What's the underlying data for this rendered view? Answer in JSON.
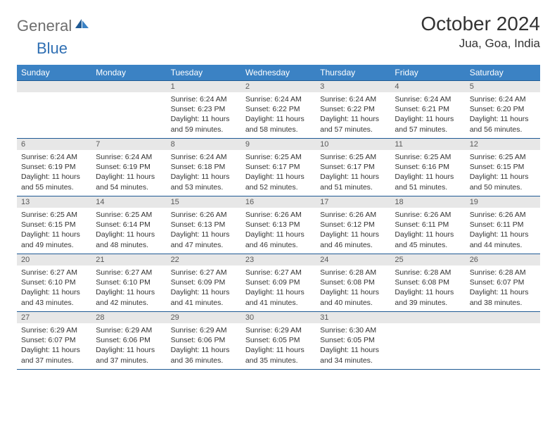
{
  "logo": {
    "part1": "General",
    "part2": "Blue"
  },
  "title": "October 2024",
  "location": "Jua, Goa, India",
  "colors": {
    "header_bg": "#3b82c4",
    "header_border": "#1f5a94",
    "daynum_bg": "#e7e7e7",
    "daynum_color": "#5a5a5a",
    "text": "#333333",
    "logo_gray": "#6e6e6e",
    "logo_blue": "#2f6fb3",
    "page_bg": "#ffffff"
  },
  "weekdays": [
    "Sunday",
    "Monday",
    "Tuesday",
    "Wednesday",
    "Thursday",
    "Friday",
    "Saturday"
  ],
  "weeks": [
    [
      null,
      null,
      {
        "n": "1",
        "sunrise": "Sunrise: 6:24 AM",
        "sunset": "Sunset: 6:23 PM",
        "daylight": "Daylight: 11 hours and 59 minutes."
      },
      {
        "n": "2",
        "sunrise": "Sunrise: 6:24 AM",
        "sunset": "Sunset: 6:22 PM",
        "daylight": "Daylight: 11 hours and 58 minutes."
      },
      {
        "n": "3",
        "sunrise": "Sunrise: 6:24 AM",
        "sunset": "Sunset: 6:22 PM",
        "daylight": "Daylight: 11 hours and 57 minutes."
      },
      {
        "n": "4",
        "sunrise": "Sunrise: 6:24 AM",
        "sunset": "Sunset: 6:21 PM",
        "daylight": "Daylight: 11 hours and 57 minutes."
      },
      {
        "n": "5",
        "sunrise": "Sunrise: 6:24 AM",
        "sunset": "Sunset: 6:20 PM",
        "daylight": "Daylight: 11 hours and 56 minutes."
      }
    ],
    [
      {
        "n": "6",
        "sunrise": "Sunrise: 6:24 AM",
        "sunset": "Sunset: 6:19 PM",
        "daylight": "Daylight: 11 hours and 55 minutes."
      },
      {
        "n": "7",
        "sunrise": "Sunrise: 6:24 AM",
        "sunset": "Sunset: 6:19 PM",
        "daylight": "Daylight: 11 hours and 54 minutes."
      },
      {
        "n": "8",
        "sunrise": "Sunrise: 6:24 AM",
        "sunset": "Sunset: 6:18 PM",
        "daylight": "Daylight: 11 hours and 53 minutes."
      },
      {
        "n": "9",
        "sunrise": "Sunrise: 6:25 AM",
        "sunset": "Sunset: 6:17 PM",
        "daylight": "Daylight: 11 hours and 52 minutes."
      },
      {
        "n": "10",
        "sunrise": "Sunrise: 6:25 AM",
        "sunset": "Sunset: 6:17 PM",
        "daylight": "Daylight: 11 hours and 51 minutes."
      },
      {
        "n": "11",
        "sunrise": "Sunrise: 6:25 AM",
        "sunset": "Sunset: 6:16 PM",
        "daylight": "Daylight: 11 hours and 51 minutes."
      },
      {
        "n": "12",
        "sunrise": "Sunrise: 6:25 AM",
        "sunset": "Sunset: 6:15 PM",
        "daylight": "Daylight: 11 hours and 50 minutes."
      }
    ],
    [
      {
        "n": "13",
        "sunrise": "Sunrise: 6:25 AM",
        "sunset": "Sunset: 6:15 PM",
        "daylight": "Daylight: 11 hours and 49 minutes."
      },
      {
        "n": "14",
        "sunrise": "Sunrise: 6:25 AM",
        "sunset": "Sunset: 6:14 PM",
        "daylight": "Daylight: 11 hours and 48 minutes."
      },
      {
        "n": "15",
        "sunrise": "Sunrise: 6:26 AM",
        "sunset": "Sunset: 6:13 PM",
        "daylight": "Daylight: 11 hours and 47 minutes."
      },
      {
        "n": "16",
        "sunrise": "Sunrise: 6:26 AM",
        "sunset": "Sunset: 6:13 PM",
        "daylight": "Daylight: 11 hours and 46 minutes."
      },
      {
        "n": "17",
        "sunrise": "Sunrise: 6:26 AM",
        "sunset": "Sunset: 6:12 PM",
        "daylight": "Daylight: 11 hours and 46 minutes."
      },
      {
        "n": "18",
        "sunrise": "Sunrise: 6:26 AM",
        "sunset": "Sunset: 6:11 PM",
        "daylight": "Daylight: 11 hours and 45 minutes."
      },
      {
        "n": "19",
        "sunrise": "Sunrise: 6:26 AM",
        "sunset": "Sunset: 6:11 PM",
        "daylight": "Daylight: 11 hours and 44 minutes."
      }
    ],
    [
      {
        "n": "20",
        "sunrise": "Sunrise: 6:27 AM",
        "sunset": "Sunset: 6:10 PM",
        "daylight": "Daylight: 11 hours and 43 minutes."
      },
      {
        "n": "21",
        "sunrise": "Sunrise: 6:27 AM",
        "sunset": "Sunset: 6:10 PM",
        "daylight": "Daylight: 11 hours and 42 minutes."
      },
      {
        "n": "22",
        "sunrise": "Sunrise: 6:27 AM",
        "sunset": "Sunset: 6:09 PM",
        "daylight": "Daylight: 11 hours and 41 minutes."
      },
      {
        "n": "23",
        "sunrise": "Sunrise: 6:27 AM",
        "sunset": "Sunset: 6:09 PM",
        "daylight": "Daylight: 11 hours and 41 minutes."
      },
      {
        "n": "24",
        "sunrise": "Sunrise: 6:28 AM",
        "sunset": "Sunset: 6:08 PM",
        "daylight": "Daylight: 11 hours and 40 minutes."
      },
      {
        "n": "25",
        "sunrise": "Sunrise: 6:28 AM",
        "sunset": "Sunset: 6:08 PM",
        "daylight": "Daylight: 11 hours and 39 minutes."
      },
      {
        "n": "26",
        "sunrise": "Sunrise: 6:28 AM",
        "sunset": "Sunset: 6:07 PM",
        "daylight": "Daylight: 11 hours and 38 minutes."
      }
    ],
    [
      {
        "n": "27",
        "sunrise": "Sunrise: 6:29 AM",
        "sunset": "Sunset: 6:07 PM",
        "daylight": "Daylight: 11 hours and 37 minutes."
      },
      {
        "n": "28",
        "sunrise": "Sunrise: 6:29 AM",
        "sunset": "Sunset: 6:06 PM",
        "daylight": "Daylight: 11 hours and 37 minutes."
      },
      {
        "n": "29",
        "sunrise": "Sunrise: 6:29 AM",
        "sunset": "Sunset: 6:06 PM",
        "daylight": "Daylight: 11 hours and 36 minutes."
      },
      {
        "n": "30",
        "sunrise": "Sunrise: 6:29 AM",
        "sunset": "Sunset: 6:05 PM",
        "daylight": "Daylight: 11 hours and 35 minutes."
      },
      {
        "n": "31",
        "sunrise": "Sunrise: 6:30 AM",
        "sunset": "Sunset: 6:05 PM",
        "daylight": "Daylight: 11 hours and 34 minutes."
      },
      null,
      null
    ]
  ]
}
